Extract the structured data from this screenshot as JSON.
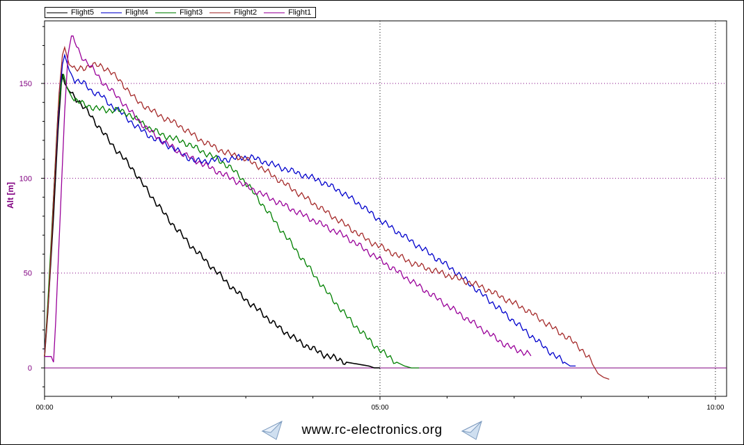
{
  "chart_data": {
    "type": "line",
    "xlabel": "",
    "ylabel": "Alt [m]",
    "xlim": [
      0,
      610
    ],
    "ylim": [
      -15,
      183
    ],
    "x_ticks": [
      {
        "value": 0,
        "label": "00:00"
      },
      {
        "value": 300,
        "label": "05:00"
      },
      {
        "value": 600,
        "label": "10:00"
      }
    ],
    "y_ticks": [
      0,
      50,
      100,
      150
    ],
    "grid": true,
    "legend_position": "top-left",
    "series": [
      {
        "name": "Flight5",
        "color": "#000000",
        "points": [
          [
            0,
            6
          ],
          [
            3,
            30
          ],
          [
            8,
            80
          ],
          [
            12,
            125
          ],
          [
            15,
            150
          ],
          [
            16,
            155
          ],
          [
            18,
            150
          ],
          [
            22,
            146
          ],
          [
            30,
            141
          ],
          [
            40,
            134
          ],
          [
            50,
            126
          ],
          [
            60,
            118
          ],
          [
            70,
            111
          ],
          [
            80,
            104
          ],
          [
            90,
            95
          ],
          [
            100,
            87
          ],
          [
            110,
            79
          ],
          [
            120,
            72
          ],
          [
            130,
            65
          ],
          [
            140,
            59
          ],
          [
            150,
            53
          ],
          [
            160,
            47
          ],
          [
            170,
            41
          ],
          [
            180,
            36
          ],
          [
            190,
            31
          ],
          [
            200,
            26
          ],
          [
            210,
            21
          ],
          [
            220,
            17
          ],
          [
            230,
            13
          ],
          [
            240,
            10
          ],
          [
            250,
            7
          ],
          [
            260,
            5
          ],
          [
            270,
            3
          ],
          [
            280,
            2
          ],
          [
            290,
            1
          ],
          [
            295,
            0
          ],
          [
            300,
            0
          ]
        ]
      },
      {
        "name": "Flight4",
        "color": "#0000cc",
        "points": [
          [
            0,
            8
          ],
          [
            4,
            40
          ],
          [
            8,
            90
          ],
          [
            13,
            140
          ],
          [
            16,
            160
          ],
          [
            18,
            165
          ],
          [
            22,
            157
          ],
          [
            27,
            152
          ],
          [
            35,
            150
          ],
          [
            42,
            146
          ],
          [
            50,
            144
          ],
          [
            58,
            139
          ],
          [
            66,
            136
          ],
          [
            75,
            131
          ],
          [
            85,
            126
          ],
          [
            95,
            122
          ],
          [
            105,
            119
          ],
          [
            115,
            116
          ],
          [
            125,
            112
          ],
          [
            135,
            109
          ],
          [
            145,
            109
          ],
          [
            155,
            110
          ],
          [
            165,
            110
          ],
          [
            175,
            111
          ],
          [
            185,
            111
          ],
          [
            195,
            109
          ],
          [
            205,
            107
          ],
          [
            215,
            105
          ],
          [
            225,
            103
          ],
          [
            235,
            101
          ],
          [
            245,
            99
          ],
          [
            255,
            96
          ],
          [
            265,
            93
          ],
          [
            275,
            89
          ],
          [
            285,
            85
          ],
          [
            295,
            80
          ],
          [
            305,
            76
          ],
          [
            315,
            72
          ],
          [
            325,
            68
          ],
          [
            335,
            64
          ],
          [
            345,
            60
          ],
          [
            355,
            56
          ],
          [
            365,
            52
          ],
          [
            375,
            47
          ],
          [
            385,
            42
          ],
          [
            395,
            37
          ],
          [
            405,
            32
          ],
          [
            415,
            27
          ],
          [
            425,
            22
          ],
          [
            435,
            17
          ],
          [
            445,
            12
          ],
          [
            455,
            7
          ],
          [
            465,
            3
          ],
          [
            470,
            1
          ],
          [
            475,
            1
          ]
        ]
      },
      {
        "name": "Flight3",
        "color": "#008000",
        "points": [
          [
            0,
            6
          ],
          [
            3,
            35
          ],
          [
            8,
            90
          ],
          [
            12,
            135
          ],
          [
            15,
            150
          ],
          [
            17,
            155
          ],
          [
            20,
            148
          ],
          [
            25,
            142
          ],
          [
            35,
            139
          ],
          [
            45,
            137
          ],
          [
            55,
            136
          ],
          [
            65,
            136
          ],
          [
            75,
            134
          ],
          [
            85,
            130
          ],
          [
            95,
            126
          ],
          [
            105,
            123
          ],
          [
            115,
            121
          ],
          [
            125,
            119
          ],
          [
            135,
            116
          ],
          [
            145,
            113
          ],
          [
            155,
            110
          ],
          [
            165,
            106
          ],
          [
            175,
            101
          ],
          [
            185,
            94
          ],
          [
            195,
            86
          ],
          [
            205,
            78
          ],
          [
            215,
            70
          ],
          [
            225,
            62
          ],
          [
            235,
            54
          ],
          [
            245,
            46
          ],
          [
            255,
            38
          ],
          [
            265,
            31
          ],
          [
            275,
            24
          ],
          [
            285,
            18
          ],
          [
            295,
            12
          ],
          [
            305,
            7
          ],
          [
            315,
            3
          ],
          [
            322,
            1
          ],
          [
            328,
            0
          ],
          [
            335,
            0
          ]
        ]
      },
      {
        "name": "Flight2",
        "color": "#a52a2a",
        "points": [
          [
            0,
            6
          ],
          [
            4,
            40
          ],
          [
            9,
            100
          ],
          [
            13,
            145
          ],
          [
            16,
            165
          ],
          [
            18,
            169
          ],
          [
            22,
            160
          ],
          [
            28,
            157
          ],
          [
            35,
            158
          ],
          [
            42,
            160
          ],
          [
            50,
            159
          ],
          [
            58,
            157
          ],
          [
            66,
            152
          ],
          [
            74,
            147
          ],
          [
            82,
            141
          ],
          [
            90,
            138
          ],
          [
            100,
            134
          ],
          [
            110,
            131
          ],
          [
            120,
            128
          ],
          [
            130,
            124
          ],
          [
            140,
            120
          ],
          [
            150,
            117
          ],
          [
            160,
            114
          ],
          [
            170,
            112
          ],
          [
            180,
            110
          ],
          [
            190,
            107
          ],
          [
            200,
            103
          ],
          [
            210,
            99
          ],
          [
            220,
            95
          ],
          [
            230,
            91
          ],
          [
            240,
            87
          ],
          [
            250,
            83
          ],
          [
            260,
            79
          ],
          [
            270,
            75
          ],
          [
            280,
            71
          ],
          [
            290,
            67
          ],
          [
            300,
            64
          ],
          [
            310,
            61
          ],
          [
            320,
            58
          ],
          [
            330,
            55
          ],
          [
            340,
            53
          ],
          [
            350,
            51
          ],
          [
            360,
            49
          ],
          [
            370,
            47
          ],
          [
            380,
            45
          ],
          [
            390,
            43
          ],
          [
            400,
            40
          ],
          [
            410,
            37
          ],
          [
            420,
            34
          ],
          [
            430,
            31
          ],
          [
            440,
            27
          ],
          [
            450,
            23
          ],
          [
            460,
            19
          ],
          [
            470,
            15
          ],
          [
            480,
            10
          ],
          [
            487,
            5
          ],
          [
            490,
            2
          ],
          [
            495,
            -3
          ],
          [
            500,
            -5
          ],
          [
            505,
            -6
          ]
        ]
      },
      {
        "name": "Flight1",
        "color": "#990099",
        "points": [
          [
            0,
            6
          ],
          [
            6,
            6
          ],
          [
            8,
            3
          ],
          [
            10,
            25
          ],
          [
            14,
            80
          ],
          [
            18,
            135
          ],
          [
            21,
            165
          ],
          [
            24,
            175
          ],
          [
            27,
            172
          ],
          [
            32,
            165
          ],
          [
            40,
            160
          ],
          [
            50,
            152
          ],
          [
            60,
            146
          ],
          [
            70,
            140
          ],
          [
            80,
            133
          ],
          [
            90,
            127
          ],
          [
            100,
            122
          ],
          [
            110,
            118
          ],
          [
            120,
            114
          ],
          [
            130,
            111
          ],
          [
            140,
            108
          ],
          [
            150,
            105
          ],
          [
            160,
            102
          ],
          [
            170,
            99
          ],
          [
            180,
            96
          ],
          [
            190,
            93
          ],
          [
            200,
            90
          ],
          [
            210,
            87
          ],
          [
            220,
            84
          ],
          [
            230,
            81
          ],
          [
            240,
            78
          ],
          [
            250,
            75
          ],
          [
            260,
            72
          ],
          [
            270,
            69
          ],
          [
            280,
            65
          ],
          [
            290,
            61
          ],
          [
            300,
            57
          ],
          [
            310,
            53
          ],
          [
            320,
            49
          ],
          [
            330,
            45
          ],
          [
            340,
            41
          ],
          [
            350,
            37
          ],
          [
            360,
            33
          ],
          [
            370,
            29
          ],
          [
            380,
            25
          ],
          [
            390,
            21
          ],
          [
            400,
            17
          ],
          [
            410,
            13
          ],
          [
            420,
            10
          ],
          [
            430,
            8
          ],
          [
            435,
            7
          ]
        ]
      }
    ]
  },
  "footer": {
    "url": "www.rc-electronics.org"
  }
}
